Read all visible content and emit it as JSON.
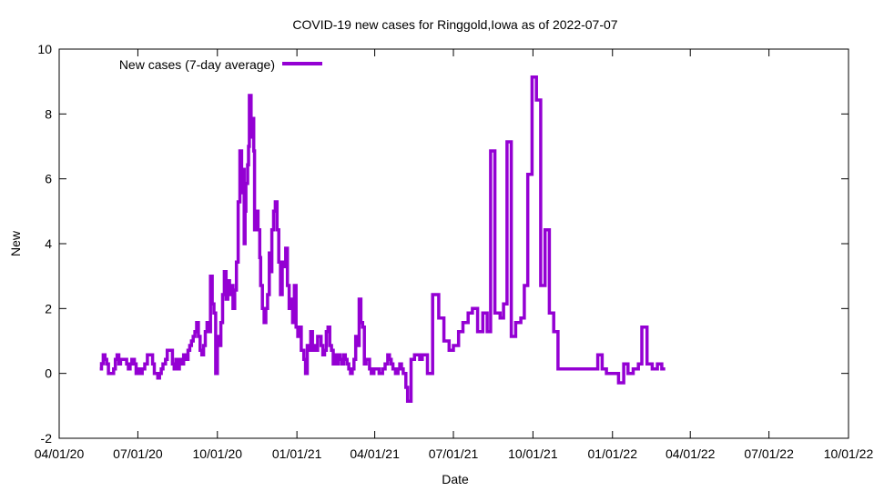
{
  "chart_data": {
    "type": "line",
    "title": "COVID-19 new cases for Ringgold,Iowa as of 2022-07-07",
    "xlabel": "Date",
    "ylabel": "New",
    "xlim": [
      "2020-04-01",
      "2022-10-01"
    ],
    "ylim": [
      -2,
      10
    ],
    "x_ticks": [
      "2020-04-01",
      "2020-07-01",
      "2020-10-01",
      "2021-01-01",
      "2021-04-01",
      "2021-07-01",
      "2021-10-01",
      "2022-01-01",
      "2022-04-01",
      "2022-07-01",
      "2022-10-01"
    ],
    "x_tick_labels": [
      "04/01/20",
      "07/01/20",
      "10/01/20",
      "01/01/21",
      "04/01/21",
      "07/01/21",
      "10/01/21",
      "01/01/22",
      "04/01/22",
      "07/01/22",
      "10/01/22"
    ],
    "y_ticks": [
      -2,
      0,
      2,
      4,
      6,
      8,
      10
    ],
    "y_tick_labels": [
      "-2",
      "0",
      "2",
      "4",
      "6",
      "8",
      "10"
    ],
    "grid": false,
    "legend_position": "top-left",
    "series": [
      {
        "name": "New cases (7-day average)",
        "color": "#9400d3",
        "step": true,
        "points": [
          [
            "2020-05-18",
            0.14
          ],
          [
            "2020-05-20",
            0.3
          ],
          [
            "2020-05-22",
            0.57
          ],
          [
            "2020-05-24",
            0.43
          ],
          [
            "2020-05-26",
            0.29
          ],
          [
            "2020-05-28",
            0.0
          ],
          [
            "2020-06-03",
            0.14
          ],
          [
            "2020-06-05",
            0.43
          ],
          [
            "2020-06-07",
            0.57
          ],
          [
            "2020-06-09",
            0.29
          ],
          [
            "2020-06-11",
            0.43
          ],
          [
            "2020-06-18",
            0.29
          ],
          [
            "2020-06-20",
            0.14
          ],
          [
            "2020-06-22",
            0.29
          ],
          [
            "2020-06-24",
            0.43
          ],
          [
            "2020-06-27",
            0.29
          ],
          [
            "2020-06-29",
            0.0
          ],
          [
            "2020-07-01",
            0.14
          ],
          [
            "2020-07-03",
            0.0
          ],
          [
            "2020-07-06",
            0.14
          ],
          [
            "2020-07-09",
            0.29
          ],
          [
            "2020-07-12",
            0.57
          ],
          [
            "2020-07-18",
            0.29
          ],
          [
            "2020-07-20",
            0.0
          ],
          [
            "2020-07-24",
            -0.14
          ],
          [
            "2020-07-26",
            0.0
          ],
          [
            "2020-07-28",
            0.14
          ],
          [
            "2020-07-30",
            0.29
          ],
          [
            "2020-08-02",
            0.43
          ],
          [
            "2020-08-04",
            0.71
          ],
          [
            "2020-08-10",
            0.29
          ],
          [
            "2020-08-12",
            0.14
          ],
          [
            "2020-08-14",
            0.43
          ],
          [
            "2020-08-16",
            0.14
          ],
          [
            "2020-08-18",
            0.43
          ],
          [
            "2020-08-20",
            0.29
          ],
          [
            "2020-08-23",
            0.57
          ],
          [
            "2020-08-26",
            0.43
          ],
          [
            "2020-08-28",
            0.71
          ],
          [
            "2020-08-30",
            0.86
          ],
          [
            "2020-09-01",
            1.0
          ],
          [
            "2020-09-03",
            1.14
          ],
          [
            "2020-09-05",
            1.29
          ],
          [
            "2020-09-07",
            1.57
          ],
          [
            "2020-09-09",
            1.14
          ],
          [
            "2020-09-11",
            0.71
          ],
          [
            "2020-09-13",
            0.57
          ],
          [
            "2020-09-15",
            0.86
          ],
          [
            "2020-09-17",
            1.29
          ],
          [
            "2020-09-19",
            1.57
          ],
          [
            "2020-09-21",
            1.29
          ],
          [
            "2020-09-23",
            3.0
          ],
          [
            "2020-09-25",
            2.14
          ],
          [
            "2020-09-27",
            1.86
          ],
          [
            "2020-09-29",
            0.0
          ],
          [
            "2020-10-01",
            1.14
          ],
          [
            "2020-10-03",
            0.86
          ],
          [
            "2020-10-05",
            1.57
          ],
          [
            "2020-10-07",
            2.43
          ],
          [
            "2020-10-09",
            3.14
          ],
          [
            "2020-10-11",
            2.29
          ],
          [
            "2020-10-13",
            2.86
          ],
          [
            "2020-10-15",
            2.43
          ],
          [
            "2020-10-17",
            2.71
          ],
          [
            "2020-10-19",
            2.0
          ],
          [
            "2020-10-21",
            2.57
          ],
          [
            "2020-10-23",
            3.43
          ],
          [
            "2020-10-25",
            5.29
          ],
          [
            "2020-10-27",
            6.86
          ],
          [
            "2020-10-29",
            5.57
          ],
          [
            "2020-10-30",
            6.29
          ],
          [
            "2020-11-01",
            4.0
          ],
          [
            "2020-11-02",
            5.0
          ],
          [
            "2020-11-03",
            5.86
          ],
          [
            "2020-11-05",
            6.43
          ],
          [
            "2020-11-06",
            7.0
          ],
          [
            "2020-11-07",
            8.57
          ],
          [
            "2020-11-09",
            7.29
          ],
          [
            "2020-11-10",
            7.86
          ],
          [
            "2020-11-12",
            6.86
          ],
          [
            "2020-11-13",
            4.43
          ],
          [
            "2020-11-15",
            5.0
          ],
          [
            "2020-11-17",
            4.43
          ],
          [
            "2020-11-19",
            3.57
          ],
          [
            "2020-11-20",
            2.71
          ],
          [
            "2020-11-22",
            2.0
          ],
          [
            "2020-11-24",
            1.57
          ],
          [
            "2020-11-26",
            2.0
          ],
          [
            "2020-11-28",
            2.43
          ],
          [
            "2020-11-30",
            3.71
          ],
          [
            "2020-12-01",
            3.14
          ],
          [
            "2020-12-03",
            4.43
          ],
          [
            "2020-12-05",
            5.0
          ],
          [
            "2020-12-07",
            5.29
          ],
          [
            "2020-12-09",
            4.43
          ],
          [
            "2020-12-11",
            3.43
          ],
          [
            "2020-12-13",
            2.43
          ],
          [
            "2020-12-15",
            3.43
          ],
          [
            "2020-12-17",
            3.29
          ],
          [
            "2020-12-19",
            3.86
          ],
          [
            "2020-12-21",
            2.71
          ],
          [
            "2020-12-23",
            2.0
          ],
          [
            "2020-12-25",
            2.29
          ],
          [
            "2020-12-27",
            1.57
          ],
          [
            "2020-12-29",
            2.71
          ],
          [
            "2020-12-31",
            1.43
          ],
          [
            "2021-01-02",
            1.14
          ],
          [
            "2021-01-04",
            1.43
          ],
          [
            "2021-01-06",
            0.71
          ],
          [
            "2021-01-09",
            0.43
          ],
          [
            "2021-01-11",
            0.0
          ],
          [
            "2021-01-13",
            0.86
          ],
          [
            "2021-01-15",
            0.71
          ],
          [
            "2021-01-17",
            1.29
          ],
          [
            "2021-01-19",
            0.71
          ],
          [
            "2021-01-21",
            0.86
          ],
          [
            "2021-01-23",
            0.71
          ],
          [
            "2021-01-25",
            1.14
          ],
          [
            "2021-01-29",
            0.86
          ],
          [
            "2021-01-31",
            0.57
          ],
          [
            "2021-02-02",
            0.71
          ],
          [
            "2021-02-04",
            1.29
          ],
          [
            "2021-02-06",
            1.43
          ],
          [
            "2021-02-08",
            0.86
          ],
          [
            "2021-02-10",
            0.71
          ],
          [
            "2021-02-12",
            0.29
          ],
          [
            "2021-02-14",
            0.57
          ],
          [
            "2021-02-16",
            0.29
          ],
          [
            "2021-02-18",
            0.57
          ],
          [
            "2021-02-20",
            0.43
          ],
          [
            "2021-02-22",
            0.29
          ],
          [
            "2021-02-24",
            0.57
          ],
          [
            "2021-02-26",
            0.43
          ],
          [
            "2021-02-28",
            0.29
          ],
          [
            "2021-03-02",
            0.14
          ],
          [
            "2021-03-04",
            0.0
          ],
          [
            "2021-03-06",
            0.14
          ],
          [
            "2021-03-08",
            0.43
          ],
          [
            "2021-03-10",
            1.14
          ],
          [
            "2021-03-12",
            0.86
          ],
          [
            "2021-03-14",
            2.29
          ],
          [
            "2021-03-16",
            1.57
          ],
          [
            "2021-03-18",
            1.43
          ],
          [
            "2021-03-20",
            0.29
          ],
          [
            "2021-03-22",
            0.43
          ],
          [
            "2021-03-26",
            0.14
          ],
          [
            "2021-03-28",
            0.0
          ],
          [
            "2021-03-31",
            0.14
          ],
          [
            "2021-04-06",
            0.0
          ],
          [
            "2021-04-10",
            0.14
          ],
          [
            "2021-04-13",
            0.29
          ],
          [
            "2021-04-16",
            0.57
          ],
          [
            "2021-04-18",
            0.43
          ],
          [
            "2021-04-20",
            0.29
          ],
          [
            "2021-04-22",
            0.14
          ],
          [
            "2021-04-25",
            0.0
          ],
          [
            "2021-04-28",
            0.14
          ],
          [
            "2021-04-30",
            0.29
          ],
          [
            "2021-05-02",
            0.14
          ],
          [
            "2021-05-04",
            0.0
          ],
          [
            "2021-05-07",
            -0.43
          ],
          [
            "2021-05-09",
            -0.86
          ],
          [
            "2021-05-13",
            0.43
          ],
          [
            "2021-05-17",
            0.57
          ],
          [
            "2021-05-23",
            0.43
          ],
          [
            "2021-05-26",
            0.57
          ],
          [
            "2021-06-01",
            0.0
          ],
          [
            "2021-06-07",
            2.43
          ],
          [
            "2021-06-14",
            1.71
          ],
          [
            "2021-06-20",
            1.0
          ],
          [
            "2021-06-26",
            0.71
          ],
          [
            "2021-07-01",
            0.86
          ],
          [
            "2021-07-07",
            1.29
          ],
          [
            "2021-07-12",
            1.57
          ],
          [
            "2021-07-18",
            1.86
          ],
          [
            "2021-07-23",
            2.0
          ],
          [
            "2021-07-29",
            1.29
          ],
          [
            "2021-08-04",
            1.86
          ],
          [
            "2021-08-09",
            1.29
          ],
          [
            "2021-08-13",
            6.86
          ],
          [
            "2021-08-18",
            1.86
          ],
          [
            "2021-08-24",
            1.71
          ],
          [
            "2021-08-28",
            2.14
          ],
          [
            "2021-09-01",
            7.14
          ],
          [
            "2021-09-06",
            1.14
          ],
          [
            "2021-09-11",
            1.57
          ],
          [
            "2021-09-17",
            1.71
          ],
          [
            "2021-09-21",
            2.71
          ],
          [
            "2021-09-25",
            6.14
          ],
          [
            "2021-09-30",
            9.14
          ],
          [
            "2021-10-05",
            8.43
          ],
          [
            "2021-10-10",
            2.71
          ],
          [
            "2021-10-15",
            4.43
          ],
          [
            "2021-10-20",
            1.86
          ],
          [
            "2021-10-25",
            1.29
          ],
          [
            "2021-10-30",
            0.14
          ],
          [
            "2021-11-02",
            0.14
          ],
          [
            "2021-12-10",
            0.14
          ],
          [
            "2021-12-15",
            0.57
          ],
          [
            "2021-12-20",
            0.14
          ],
          [
            "2021-12-25",
            0.0
          ],
          [
            "2022-01-08",
            -0.29
          ],
          [
            "2022-01-14",
            0.29
          ],
          [
            "2022-01-19",
            0.0
          ],
          [
            "2022-01-25",
            0.14
          ],
          [
            "2022-01-31",
            0.29
          ],
          [
            "2022-02-04",
            1.43
          ],
          [
            "2022-02-10",
            0.29
          ],
          [
            "2022-02-16",
            0.14
          ],
          [
            "2022-02-22",
            0.29
          ],
          [
            "2022-02-27",
            0.14
          ],
          [
            "2022-03-03",
            0.14
          ]
        ]
      }
    ]
  }
}
